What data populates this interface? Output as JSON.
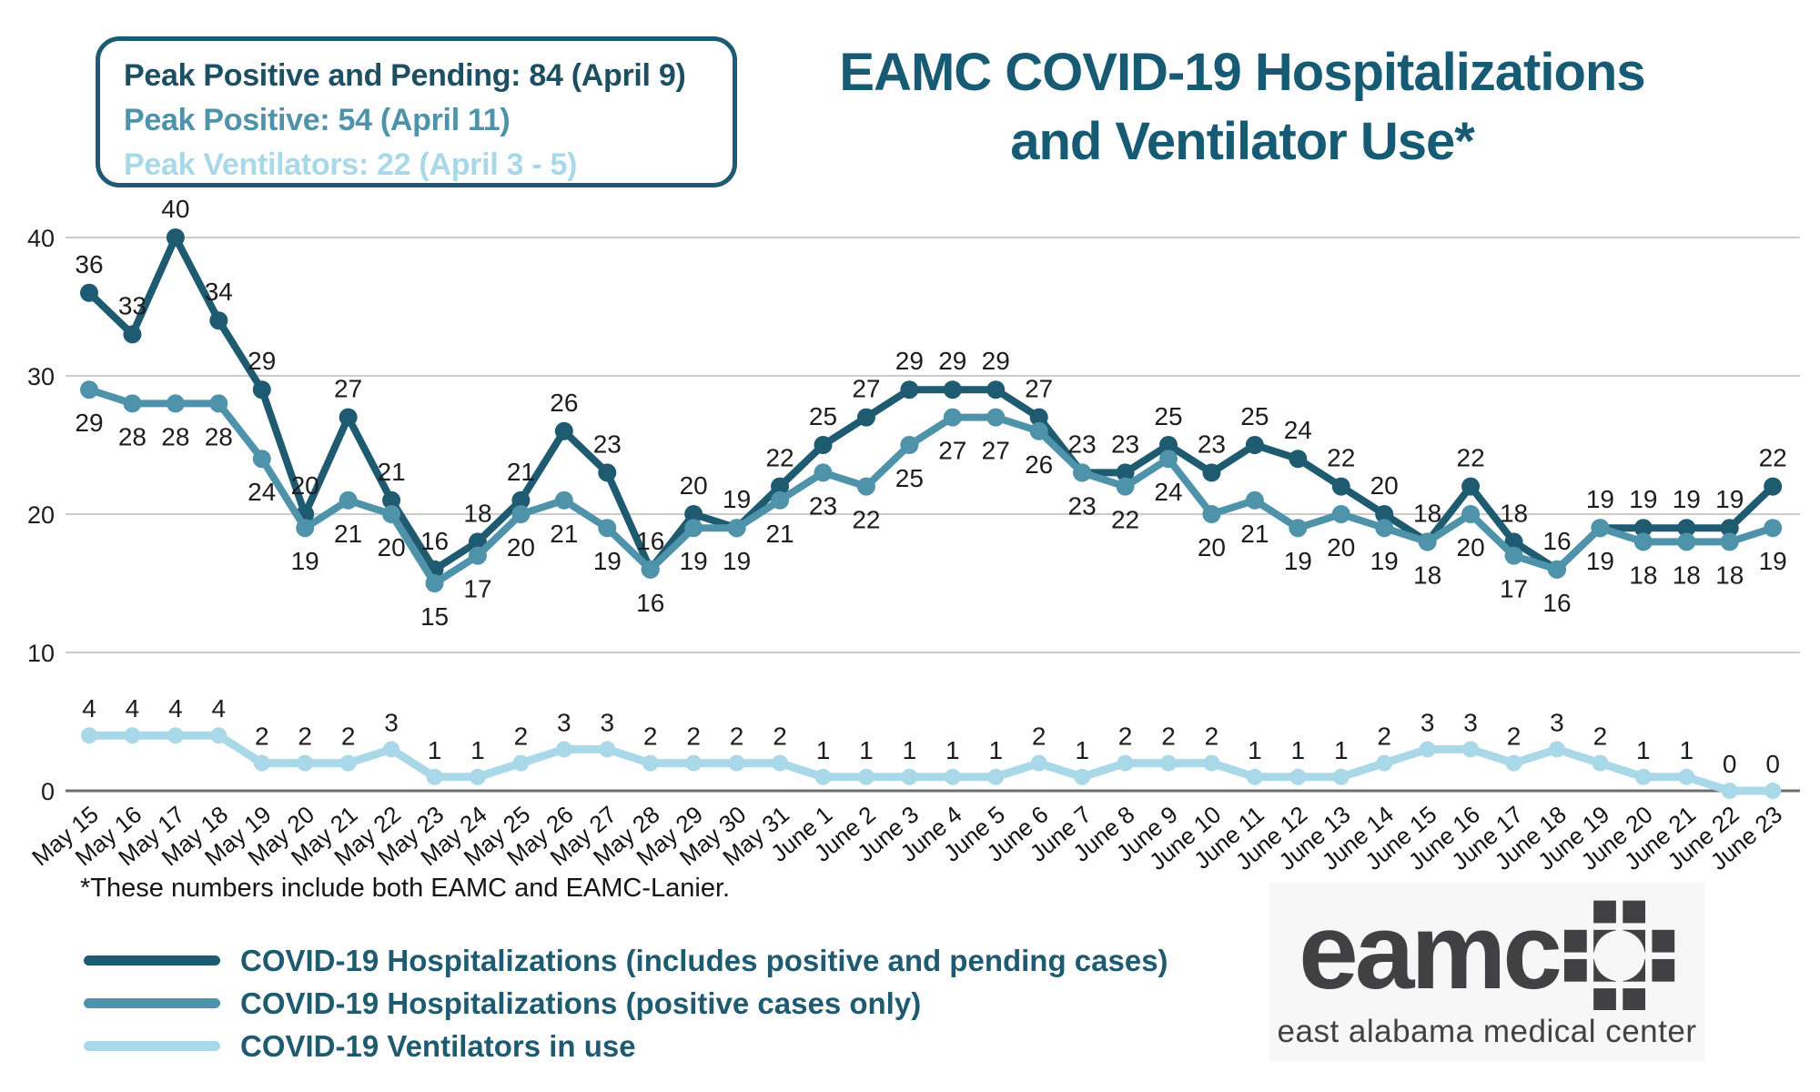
{
  "colors": {
    "dark_teal": "#1e5b70",
    "medium_teal": "#4e93aa",
    "light_blue": "#a9d9e8",
    "title_teal": "#175a74",
    "callout_dark": "#1d4f63",
    "gridline": "#cbcbcb",
    "zero_line": "#6f6f6f",
    "logo_gray": "#414042"
  },
  "callout": {
    "lines": [
      {
        "text": "Peak Positive and Pending: 84 (April 9)",
        "color": "#1d4f63"
      },
      {
        "text": "Peak Positive: 54 (April 11)",
        "color": "#4e93aa"
      },
      {
        "text": "Peak Ventilators: 22 (April 3 - 5)",
        "color": "#a9d9e8"
      }
    ]
  },
  "title": {
    "line1": "EAMC COVID-19 Hospitalizations",
    "line2": "and Ventilator Use*"
  },
  "chart_data": {
    "type": "line",
    "categories": [
      "May 15",
      "May 16",
      "May 17",
      "May 18",
      "May 19",
      "May 20",
      "May 21",
      "May 22",
      "May 23",
      "May 24",
      "May 25",
      "May 26",
      "May 27",
      "May 28",
      "May 29",
      "May 30",
      "May 31",
      "June 1",
      "June 2",
      "June 3",
      "June 4",
      "June 5",
      "June 6",
      "June 7",
      "June 8",
      "June 9",
      "June 10",
      "June 11",
      "June 12",
      "June 13",
      "June 14",
      "June 15",
      "June 16",
      "June 17",
      "June 18",
      "June 19",
      "June 20",
      "June 21",
      "June 22",
      "June 23"
    ],
    "series": [
      {
        "name": "COVID-19 Hospitalizations (includes positive and pending cases)",
        "color": "#1e5b70",
        "values": [
          36,
          33,
          40,
          34,
          29,
          20,
          27,
          21,
          16,
          18,
          21,
          26,
          23,
          16,
          20,
          19,
          22,
          25,
          27,
          29,
          29,
          29,
          27,
          23,
          23,
          25,
          23,
          25,
          24,
          22,
          20,
          18,
          22,
          18,
          16,
          19,
          19,
          19,
          19,
          22
        ]
      },
      {
        "name": "COVID-19 Hospitalizations (positive cases only)",
        "color": "#4e93aa",
        "values": [
          29,
          28,
          28,
          28,
          24,
          19,
          21,
          20,
          15,
          17,
          20,
          21,
          19,
          16,
          19,
          19,
          21,
          23,
          22,
          25,
          27,
          27,
          26,
          23,
          22,
          24,
          20,
          21,
          19,
          20,
          19,
          18,
          20,
          17,
          16,
          19,
          18,
          18,
          18,
          19
        ]
      },
      {
        "name": "COVID-19 Ventilators in use",
        "color": "#a9d9e8",
        "values": [
          4,
          4,
          4,
          4,
          2,
          2,
          2,
          3,
          1,
          1,
          2,
          3,
          3,
          2,
          2,
          2,
          2,
          1,
          1,
          1,
          1,
          1,
          2,
          1,
          2,
          2,
          2,
          1,
          1,
          1,
          2,
          3,
          3,
          2,
          3,
          2,
          1,
          1,
          0,
          0
        ]
      }
    ],
    "yticks": [
      0,
      10,
      20,
      30,
      40
    ],
    "ylim": [
      0,
      42
    ],
    "xlabel": "",
    "ylabel": "",
    "grid": true,
    "data_labels": true,
    "legend_position": "bottom-left"
  },
  "footnote": "*These numbers include both EAMC and EAMC-Lanier.",
  "legend": [
    {
      "label": "COVID-19 Hospitalizations (includes positive and pending cases)",
      "color": "#1e5b70"
    },
    {
      "label": "COVID-19 Hospitalizations (positive cases only)",
      "color": "#4e93aa"
    },
    {
      "label": "COVID-19 Ventilators in use",
      "color": "#a9d9e8"
    }
  ],
  "logo": {
    "wordmark": "eamc",
    "subtitle": "east alabama medical center"
  }
}
